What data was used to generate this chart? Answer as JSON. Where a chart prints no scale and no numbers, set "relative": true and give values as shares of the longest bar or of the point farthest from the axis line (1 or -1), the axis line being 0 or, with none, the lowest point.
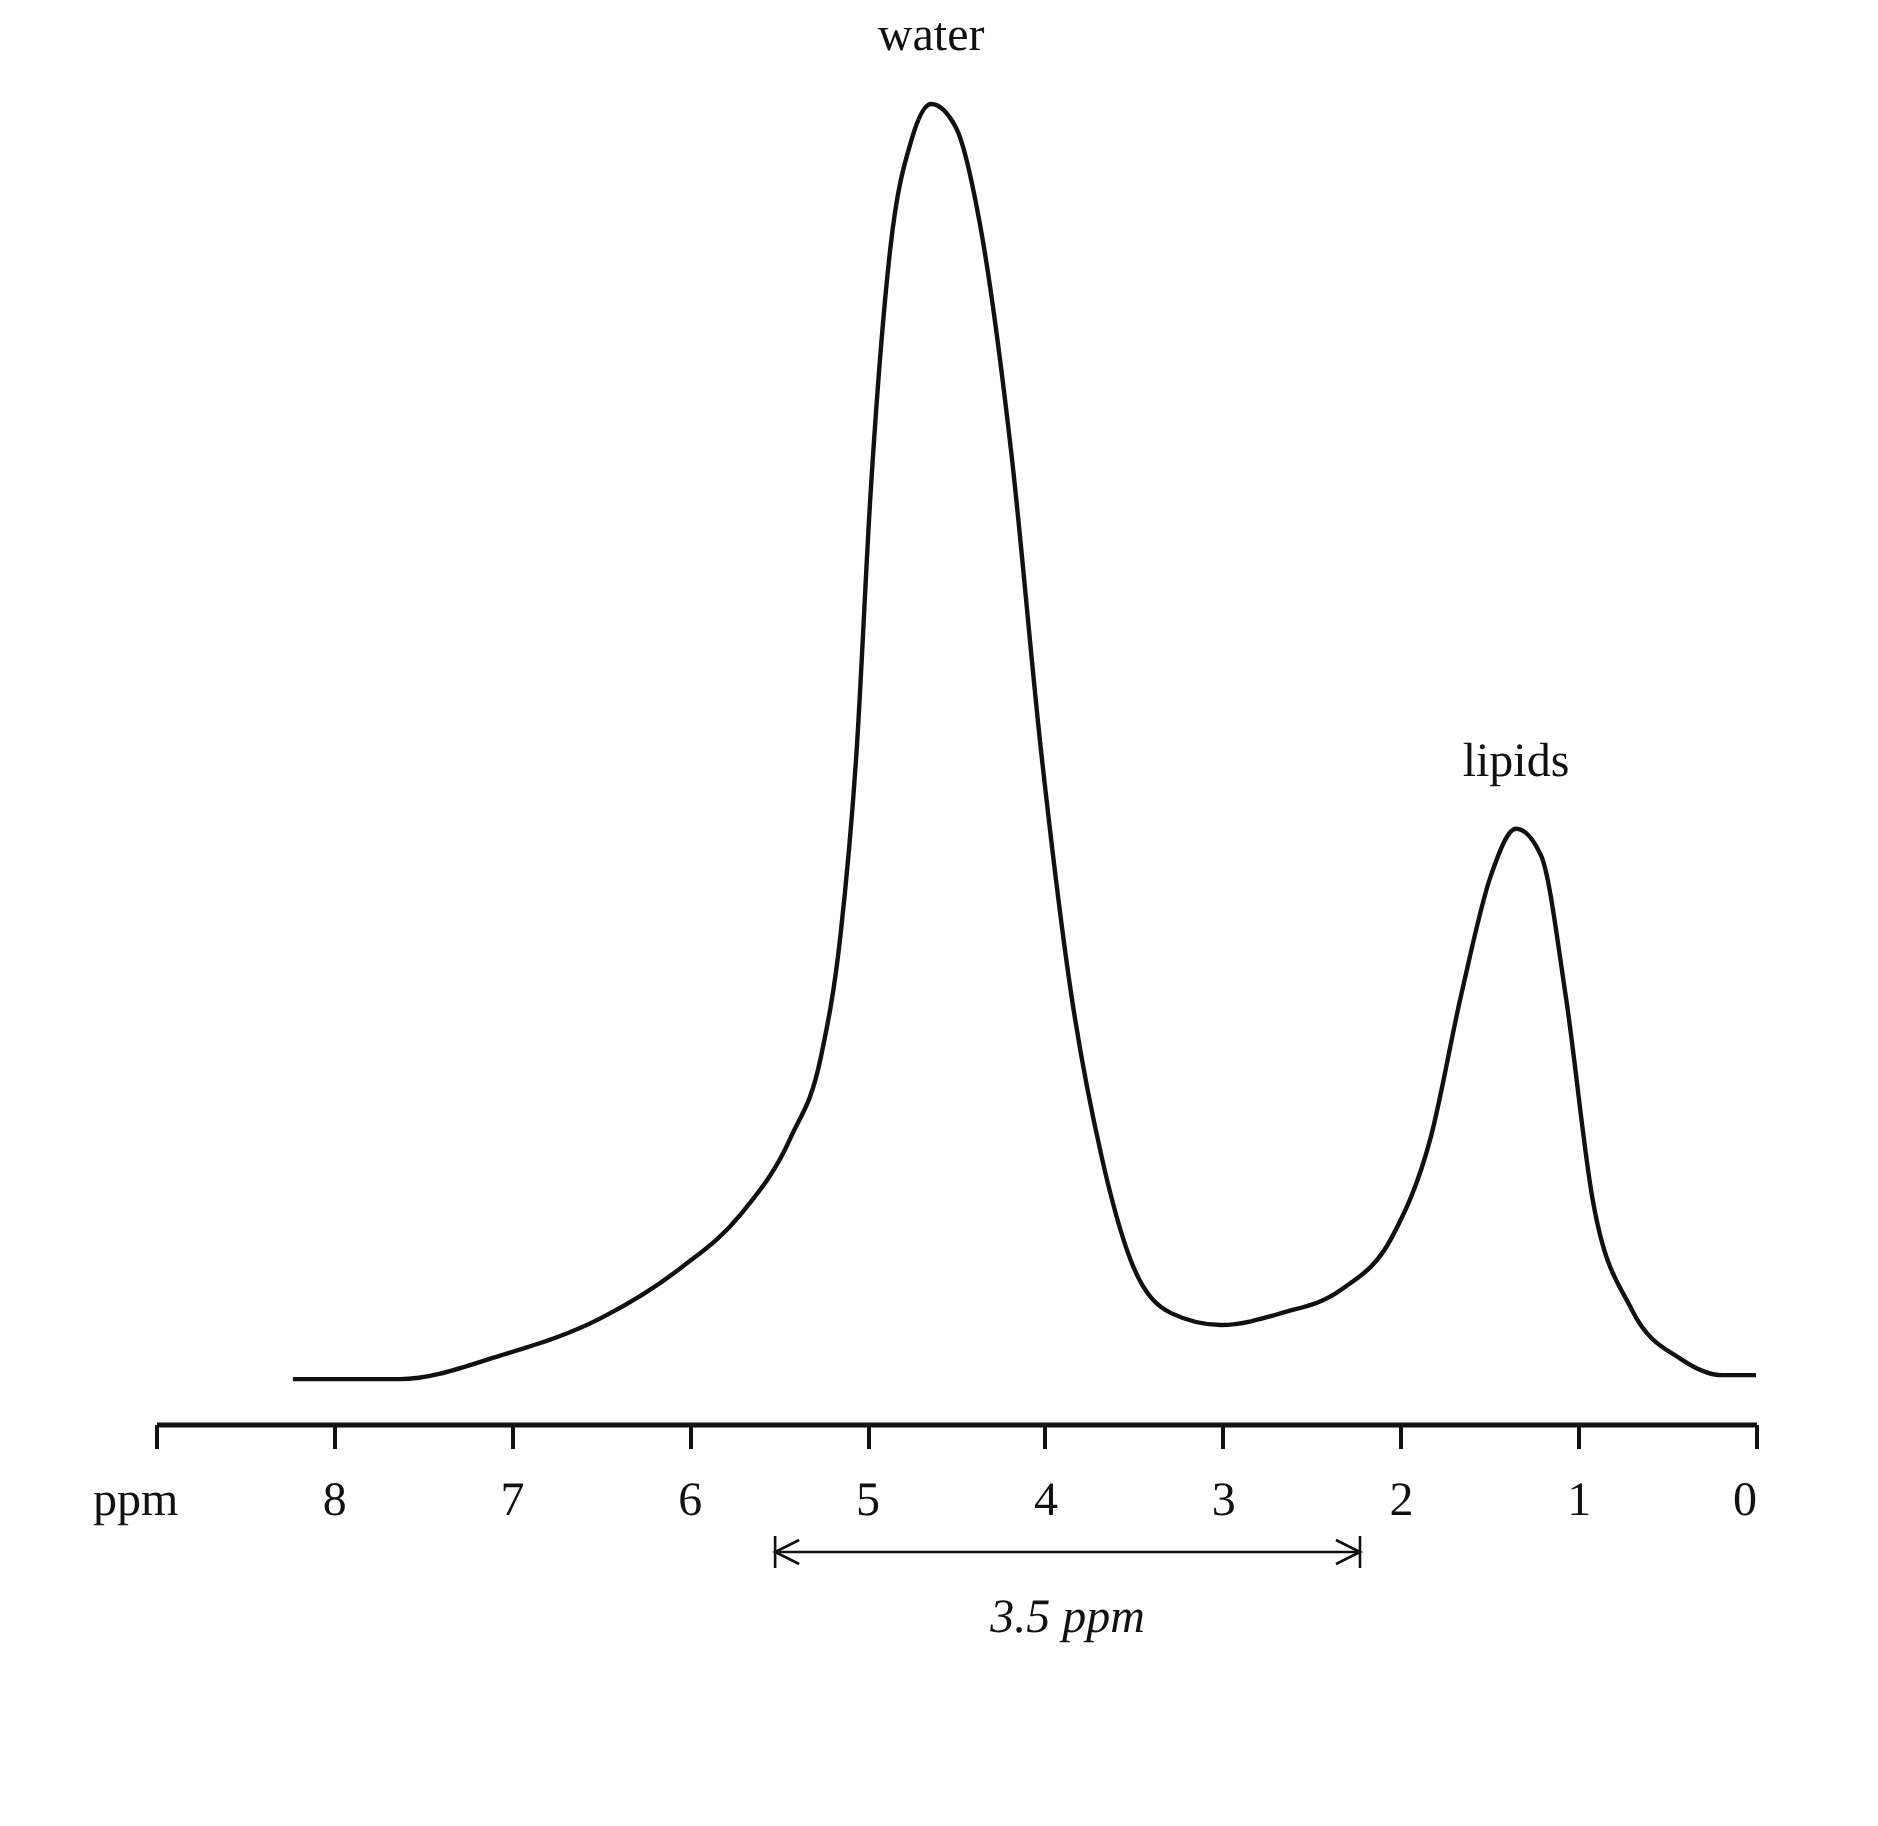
{
  "chart_data": {
    "type": "line",
    "relative": true,
    "xlabel": "ppm",
    "xlim": [
      9,
      0
    ],
    "xticks": [
      {
        "value": 9,
        "label": null
      },
      8,
      7,
      6,
      5,
      4,
      3,
      2,
      1,
      0
    ],
    "tick_labels": "x",
    "grid": false,
    "marker": "none",
    "line_style": "solid",
    "annotations": [
      {
        "text": "water",
        "x": 4.64,
        "y": 1
      },
      {
        "text": "lipids",
        "x": 1.35,
        "y": 0.45
      },
      "3.5 ppm"
    ],
    "series": [
      {
        "color": "#111111",
        "x": [
          8.23,
          7.63,
          7.06,
          6.5,
          6.05,
          5.71,
          5.43,
          5.26,
          5.15,
          5.06,
          4.98,
          4.87,
          4.75,
          4.64,
          4.5,
          4.36,
          4.19,
          4.02,
          3.85,
          3.68,
          3.52,
          3.29,
          3.01,
          2.67,
          2.33,
          2.05,
          1.83,
          1.66,
          1.49,
          1.35,
          1.21,
          1.07,
          0.92,
          0.7,
          0.42,
          0.19,
          0.0
        ],
        "values": [
          0.034,
          0.034,
          0.052,
          0.08,
          0.118,
          0.159,
          0.217,
          0.278,
          0.37,
          0.508,
          0.706,
          0.89,
          0.973,
          1.0,
          0.982,
          0.905,
          0.737,
          0.508,
          0.324,
          0.202,
          0.125,
          0.084,
          0.075,
          0.084,
          0.102,
          0.141,
          0.217,
          0.324,
          0.416,
          0.451,
          0.431,
          0.324,
          0.171,
          0.087,
          0.049,
          0.037,
          0.037
        ]
      }
    ]
  }
}
